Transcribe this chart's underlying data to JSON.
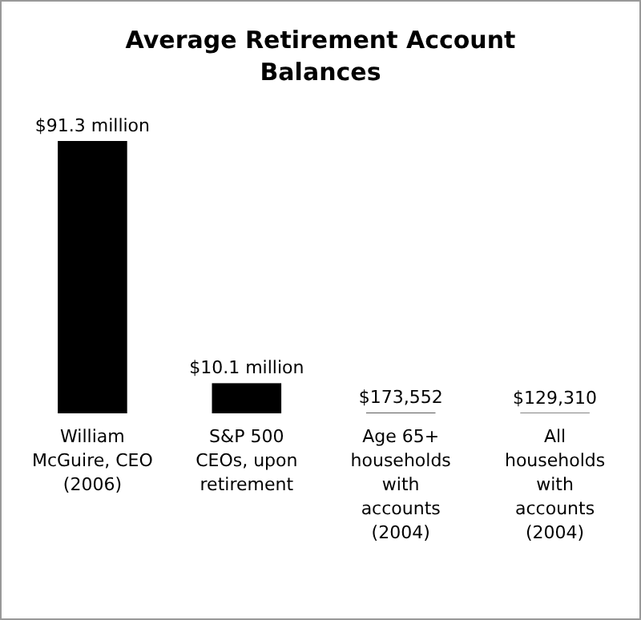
{
  "chart_data": {
    "type": "bar",
    "title": "Average Retirement Account Balances",
    "categories": [
      "William McGuire, CEO (2006)",
      "S&P 500 CEOs, upon retirement",
      "Age 65+ households with accounts (2004)",
      "All households with accounts (2004)"
    ],
    "values": [
      91300000,
      10100000,
      173552,
      129310
    ],
    "value_labels": [
      "$91.3 million",
      "$10.1 million",
      "$173,552",
      "$129,310"
    ],
    "color": "#000000"
  }
}
